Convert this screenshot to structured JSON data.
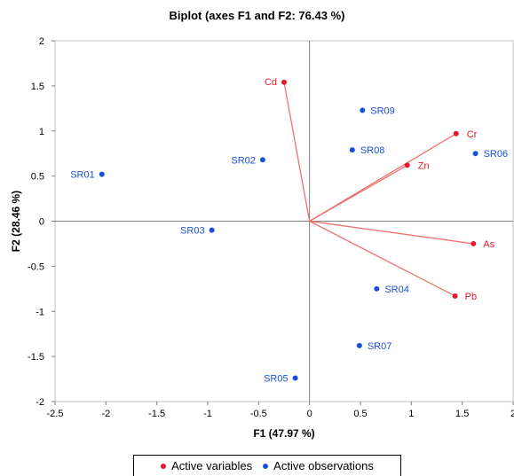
{
  "chart_data": {
    "type": "scatter",
    "title": "Biplot (axes F1 and F2: 76.43 %)",
    "xlabel": "F1 (47.97 %)",
    "ylabel": "F2 (28.46 %)",
    "xlim": [
      -2.5,
      2
    ],
    "ylim": [
      -2,
      2
    ],
    "xticks": [
      "-2.5",
      "-2",
      "-1.5",
      "-1",
      "-0.5",
      "0",
      "0.5",
      "1",
      "1.5",
      "2"
    ],
    "yticks": [
      "2",
      "1.5",
      "1",
      "0.5",
      "0",
      "-0.5",
      "-1",
      "-1.5",
      "-2"
    ],
    "grid": false,
    "legend_position": "bottom",
    "series": [
      {
        "name": "Active variables",
        "color": "#e8192c",
        "line_color": "#f07070",
        "points": [
          {
            "label": "Cd",
            "x": -0.25,
            "y": 1.54
          },
          {
            "label": "Cr",
            "x": 1.44,
            "y": 0.97
          },
          {
            "label": "Zn",
            "x": 0.96,
            "y": 0.62
          },
          {
            "label": "As",
            "x": 1.61,
            "y": -0.25
          },
          {
            "label": "Pb",
            "x": 1.43,
            "y": -0.83
          }
        ]
      },
      {
        "name": "Active observations",
        "color": "#1a4fd8",
        "points": [
          {
            "label": "SR01",
            "x": -2.04,
            "y": 0.52
          },
          {
            "label": "SR02",
            "x": -0.46,
            "y": 0.68
          },
          {
            "label": "SR03",
            "x": -0.96,
            "y": -0.1
          },
          {
            "label": "SR04",
            "x": 0.66,
            "y": -0.75
          },
          {
            "label": "SR05",
            "x": -0.14,
            "y": -1.74
          },
          {
            "label": "SR06",
            "x": 1.63,
            "y": 0.75
          },
          {
            "label": "SR07",
            "x": 0.49,
            "y": -1.38
          },
          {
            "label": "SR08",
            "x": 0.42,
            "y": 0.79
          },
          {
            "label": "SR09",
            "x": 0.52,
            "y": 1.23
          }
        ]
      }
    ]
  }
}
